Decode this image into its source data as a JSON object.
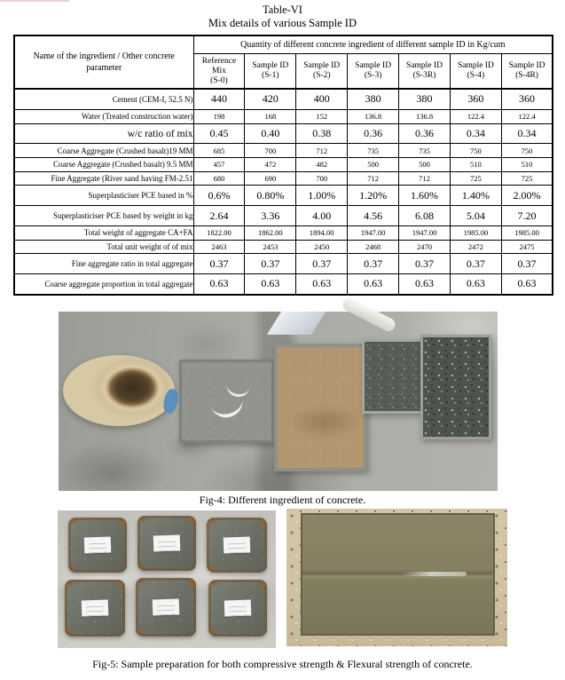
{
  "page": {
    "title_line1": "Table-VI",
    "title_line2": "Mix details of various Sample ID"
  },
  "table": {
    "col1_header": "Name of the ingredient / Other concrete parameter",
    "span_header": "Quantity of different concrete ingredient of different sample ID in Kg/cum",
    "col_headers": [
      "Reference\nMix\n(S-0)",
      "Sample ID\n(S-1)",
      "Sample ID\n(S-2)",
      "Sample ID\n(S-3)",
      "Sample ID\n(S-3R)",
      "Sample ID\n(S-4)",
      "Sample ID\n(S-4R)"
    ],
    "rows": [
      {
        "label": "Cement (CEM-I, 52.5 N)",
        "values": [
          "440",
          "420",
          "400",
          "380",
          "380",
          "360",
          "360"
        ],
        "big_values": true,
        "big_label": false
      },
      {
        "label": "Water (Treated construction water)",
        "values": [
          "198",
          "168",
          "152",
          "136.8",
          "136.8",
          "122.4",
          "122.4"
        ],
        "big_values": false,
        "big_label": false
      },
      {
        "label": "w/c ratio of mix",
        "values": [
          "0.45",
          "0.40",
          "0.38",
          "0.36",
          "0.36",
          "0.34",
          "0.34"
        ],
        "big_values": true,
        "big_label": true
      },
      {
        "label": "Coarse Aggregate (Crushed basalt)19 MM",
        "values": [
          "685",
          "700",
          "712",
          "735",
          "735",
          "750",
          "750"
        ],
        "big_values": false,
        "big_label": false
      },
      {
        "label": "Coarse Aggregate (Crushed basalt) 9.5 MM",
        "values": [
          "457",
          "472",
          "482",
          "500",
          "500",
          "510",
          "510"
        ],
        "big_values": false,
        "big_label": false
      },
      {
        "label": "Fine  Aggregate (River sand having FM-2.51",
        "values": [
          "680",
          "690",
          "700",
          "712",
          "712",
          "725",
          "725"
        ],
        "big_values": false,
        "big_label": false
      },
      {
        "label": "Superplasticiser PCE based in %",
        "values": [
          "0.6%",
          "0.80%",
          "1.00%",
          "1.20%",
          "1.60%",
          "1.40%",
          "2.00%"
        ],
        "big_values": true,
        "big_label": false
      },
      {
        "label": "Superplasticiser PCE based by weight  in kg",
        "values": [
          "2.64",
          "3.36",
          "4.00",
          "4.56",
          "6.08",
          "5.04",
          "7.20"
        ],
        "big_values": true,
        "big_label": false
      },
      {
        "label": "Total weight of aggregate CA+FA",
        "values": [
          "1822.00",
          "1862.00",
          "1894.00",
          "1947.00",
          "1947.00",
          "1985.00",
          "1985.00"
        ],
        "big_values": false,
        "big_label": false
      },
      {
        "label": "Total unit weight of of mix",
        "values": [
          "2463",
          "2453",
          "2450",
          "2468",
          "2470",
          "2472",
          "2475"
        ],
        "big_values": false,
        "big_label": false
      },
      {
        "label": "Fine aggregate ratio in total aggregate",
        "values": [
          "0.37",
          "0.37",
          "0.37",
          "0.37",
          "0.37",
          "0.37",
          "0.37"
        ],
        "big_values": true,
        "big_label": false
      },
      {
        "label": "Coarse aggregate proportion in total aggregate",
        "values": [
          "0.63",
          "0.63",
          "0.63",
          "0.63",
          "0.63",
          "0.63",
          "0.63"
        ],
        "big_values": true,
        "big_label": false
      }
    ]
  },
  "figures": {
    "fig4_caption": "Fig-4: Different ingredient of concrete.",
    "fig5_caption": "Fig-5: Sample preparation for both compressive strength & Flexural strength of concrete.",
    "fig5_cube_count": 6
  },
  "colors": {
    "concrete_floor": "#a6a8a2",
    "sand": "#b3956f",
    "aggregate_dark": "#565a55",
    "cement_powder": "#90948d",
    "bucket_rim": "#d9cba8",
    "fresh_concrete": "#857e60",
    "rust": "#8a5a30",
    "table_border": "#000000"
  }
}
